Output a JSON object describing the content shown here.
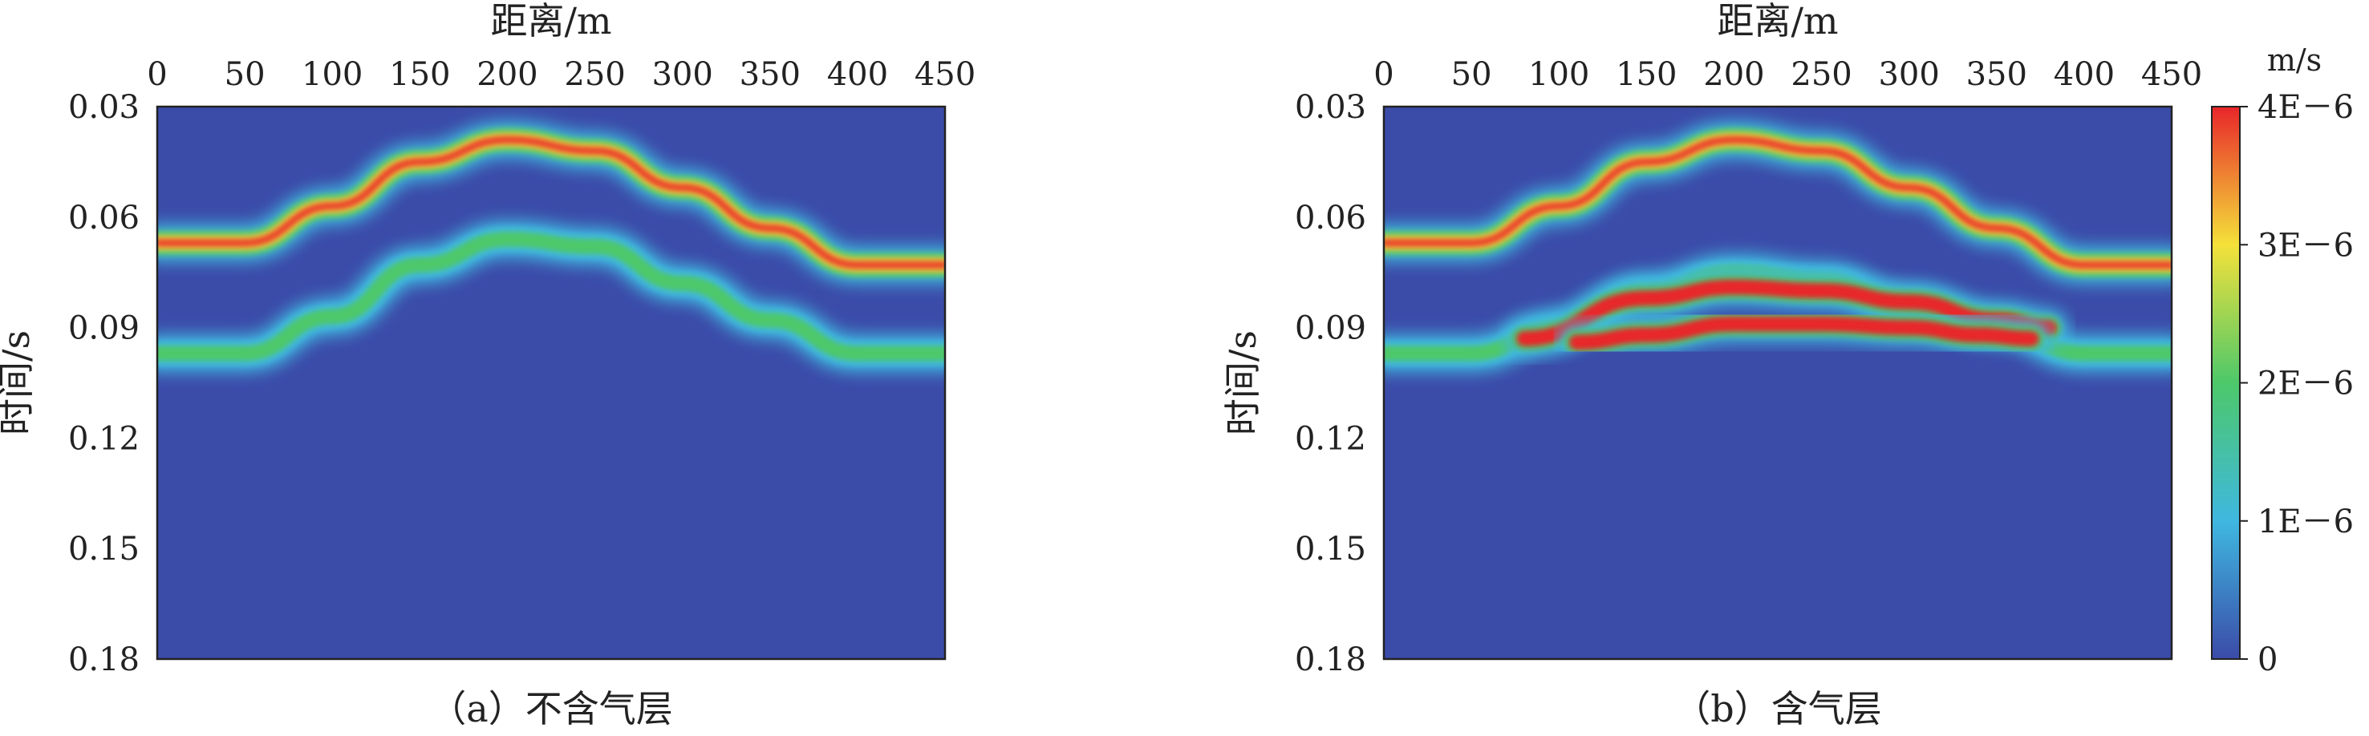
{
  "chart_data": [
    {
      "type": "heatmap",
      "caption": "（a）不含气层",
      "xlabel": "距离/m",
      "ylabel": "时间/s",
      "xlim": [
        0,
        450
      ],
      "ylim": [
        0.03,
        0.18
      ],
      "y_inverted": true,
      "x_ticks": [
        "0",
        "50",
        "100",
        "150",
        "200",
        "250",
        "300",
        "350",
        "400",
        "450"
      ],
      "y_ticks": [
        "0.03",
        "0.06",
        "0.09",
        "0.12",
        "0.15",
        "0.18"
      ],
      "features": [
        {
          "name": "upper-reflector",
          "shape": "arch",
          "x": [
            0,
            50,
            100,
            150,
            200,
            250,
            300,
            350,
            400,
            450
          ],
          "t": [
            0.067,
            0.067,
            0.057,
            0.045,
            0.039,
            0.042,
            0.052,
            0.063,
            0.073,
            0.073
          ],
          "amplitude": 3.6e-06
        },
        {
          "name": "lower-reflector",
          "shape": "arch",
          "x": [
            0,
            50,
            100,
            150,
            200,
            250,
            300,
            350,
            400,
            450
          ],
          "t": [
            0.097,
            0.097,
            0.087,
            0.073,
            0.066,
            0.068,
            0.078,
            0.088,
            0.097,
            0.097
          ],
          "amplitude": 2.2e-06
        }
      ]
    },
    {
      "type": "heatmap",
      "caption": "（b）含气层",
      "xlabel": "距离/m",
      "ylabel": "时间/s",
      "xlim": [
        0,
        450
      ],
      "ylim": [
        0.03,
        0.18
      ],
      "y_inverted": true,
      "x_ticks": [
        "0",
        "50",
        "100",
        "150",
        "200",
        "250",
        "300",
        "350",
        "400",
        "450"
      ],
      "y_ticks": [
        "0.03",
        "0.06",
        "0.09",
        "0.12",
        "0.15",
        "0.18"
      ],
      "features": [
        {
          "name": "upper-reflector",
          "shape": "arch",
          "x": [
            0,
            50,
            100,
            150,
            200,
            250,
            300,
            350,
            400,
            450
          ],
          "t": [
            0.067,
            0.067,
            0.057,
            0.045,
            0.039,
            0.042,
            0.052,
            0.063,
            0.073,
            0.073
          ],
          "amplitude": 3.6e-06
        },
        {
          "name": "lower-reflector",
          "shape": "arch",
          "x": [
            0,
            50,
            100,
            150,
            200,
            250,
            300,
            350,
            400,
            450
          ],
          "t": [
            0.097,
            0.097,
            0.09,
            0.08,
            0.075,
            0.077,
            0.084,
            0.09,
            0.097,
            0.097
          ],
          "amplitude": 2e-06
        },
        {
          "name": "gas-layer-top",
          "shape": "lens",
          "x": [
            80,
            150,
            200,
            250,
            300,
            350,
            380
          ],
          "t": [
            0.093,
            0.082,
            0.079,
            0.08,
            0.083,
            0.088,
            0.09
          ],
          "amplitude": 4.5e-06
        },
        {
          "name": "gas-layer-bottom",
          "shape": "lens",
          "x": [
            110,
            150,
            200,
            250,
            300,
            340,
            370
          ],
          "t": [
            0.094,
            0.092,
            0.089,
            0.089,
            0.09,
            0.092,
            0.093
          ],
          "amplitude": 4.5e-06
        }
      ]
    }
  ],
  "colorbar": {
    "unit": "m/s",
    "min": 0,
    "max": 4e-06,
    "tick_labels": [
      "4E－6",
      "3E－6",
      "2E－6",
      "1E－6",
      "0"
    ],
    "tick_values": [
      4e-06,
      3e-06,
      2e-06,
      1e-06,
      0
    ],
    "colormap": "jet",
    "colors": {
      "low": "#3b4ba8",
      "mid_low": "#3fb8e0",
      "mid": "#4dc86a",
      "mid_high": "#f4e13a",
      "high": "#e8262a"
    }
  }
}
